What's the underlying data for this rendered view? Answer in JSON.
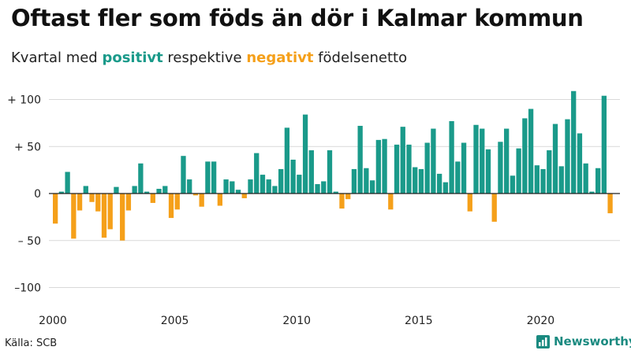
{
  "title": "Oftast fler som föds än dör i Kalmar kommun",
  "subtitle": {
    "prefix": "Kvartal med ",
    "positive_word": "positivt",
    "middle": " respektive ",
    "negative_word": "negativt",
    "suffix": " födelsenetto"
  },
  "source": "Källa: SCB",
  "brand": "Newsworthy",
  "colors": {
    "positive": "#1a9a8a",
    "negative": "#f5a01a",
    "grid": "#d9d9d9",
    "axis": "#222222"
  },
  "chart_data": {
    "type": "bar",
    "ylim": [
      -110,
      110
    ],
    "yticks": [
      {
        "value": 100,
        "label": "+ 100"
      },
      {
        "value": 50,
        "label": "+  50"
      },
      {
        "value": 0,
        "label": "0"
      },
      {
        "value": -50,
        "label": "– 50"
      },
      {
        "value": -100,
        "label": "–100"
      }
    ],
    "xticks": [
      "2000",
      "2005",
      "2010",
      "2015",
      "2020"
    ],
    "start": "2000 Q1",
    "values": [
      -32,
      2,
      23,
      -48,
      -18,
      8,
      -9,
      -19,
      -47,
      -38,
      7,
      -50,
      -18,
      8,
      32,
      2,
      -10,
      5,
      8,
      -26,
      -17,
      40,
      15,
      -2,
      -14,
      34,
      34,
      -13,
      15,
      13,
      4,
      -5,
      15,
      43,
      20,
      15,
      8,
      26,
      70,
      36,
      20,
      84,
      46,
      10,
      13,
      46,
      2,
      -16,
      -6,
      26,
      72,
      27,
      14,
      57,
      58,
      -17,
      52,
      71,
      52,
      28,
      26,
      54,
      69,
      21,
      12,
      77,
      34,
      54,
      -19,
      73,
      69,
      47,
      -30,
      55,
      69,
      19,
      48,
      80,
      90,
      30,
      26,
      46,
      74,
      29,
      79,
      109,
      64,
      32,
      2,
      27,
      104,
      -21
    ]
  }
}
